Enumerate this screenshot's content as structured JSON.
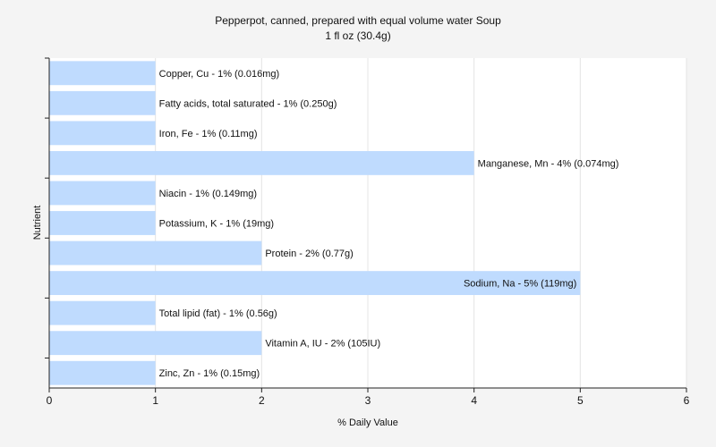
{
  "chart_data": {
    "type": "bar",
    "orientation": "horizontal",
    "title": "Pepperpot, canned, prepared with equal volume water Soup",
    "subtitle": "1 fl oz (30.4g)",
    "xlabel": "% Daily Value",
    "ylabel": "Nutrient",
    "xlim": [
      0,
      6
    ],
    "xticks": [
      0,
      1,
      2,
      3,
      4,
      5,
      6
    ],
    "grid": true,
    "bar_color": "#bfdbfe",
    "categories": [
      "Copper, Cu",
      "Fatty acids, total saturated",
      "Iron, Fe",
      "Manganese, Mn",
      "Niacin",
      "Potassium, K",
      "Protein",
      "Sodium, Na",
      "Total lipid (fat)",
      "Vitamin A, IU",
      "Zinc, Zn"
    ],
    "values": [
      1,
      1,
      1,
      4,
      1,
      1,
      2,
      5,
      1,
      2,
      1
    ],
    "labels": [
      "Copper, Cu - 1% (0.016mg)",
      "Fatty acids, total saturated - 1% (0.250g)",
      "Iron, Fe - 1% (0.11mg)",
      "Manganese, Mn - 4% (0.074mg)",
      "Niacin - 1% (0.149mg)",
      "Potassium, K - 1% (19mg)",
      "Protein - 2% (0.77g)",
      "Sodium, Na - 5% (119mg)",
      "Total lipid (fat) - 1% (0.56g)",
      "Vitamin A, IU - 2% (105IU)",
      "Zinc, Zn - 1% (0.15mg)"
    ]
  }
}
